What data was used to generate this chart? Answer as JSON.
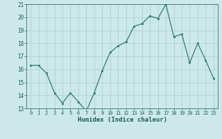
{
  "x": [
    0,
    1,
    2,
    3,
    4,
    5,
    6,
    7,
    8,
    9,
    10,
    11,
    12,
    13,
    14,
    15,
    16,
    17,
    18,
    19,
    20,
    21,
    22,
    23
  ],
  "y": [
    16.3,
    16.3,
    15.7,
    14.2,
    13.4,
    14.2,
    13.5,
    12.8,
    14.2,
    15.9,
    17.3,
    17.8,
    18.1,
    19.3,
    19.5,
    20.1,
    19.9,
    21.0,
    18.5,
    18.7,
    16.5,
    18.0,
    16.7,
    15.3
  ],
  "xlabel": "Humidex (Indice chaleur)",
  "ylim": [
    13,
    21
  ],
  "xlim": [
    -0.5,
    23.5
  ],
  "yticks": [
    13,
    14,
    15,
    16,
    17,
    18,
    19,
    20,
    21
  ],
  "xticks": [
    0,
    1,
    2,
    3,
    4,
    5,
    6,
    7,
    8,
    9,
    10,
    11,
    12,
    13,
    14,
    15,
    16,
    17,
    18,
    19,
    20,
    21,
    22,
    23
  ],
  "line_color": "#2d7d6f",
  "marker_color": "#2d7d6f",
  "bg_color": "#cce8e8",
  "grid_color": "#aacece",
  "tick_label_color": "#1a5c5c",
  "axis_label_color": "#1a5c5c"
}
